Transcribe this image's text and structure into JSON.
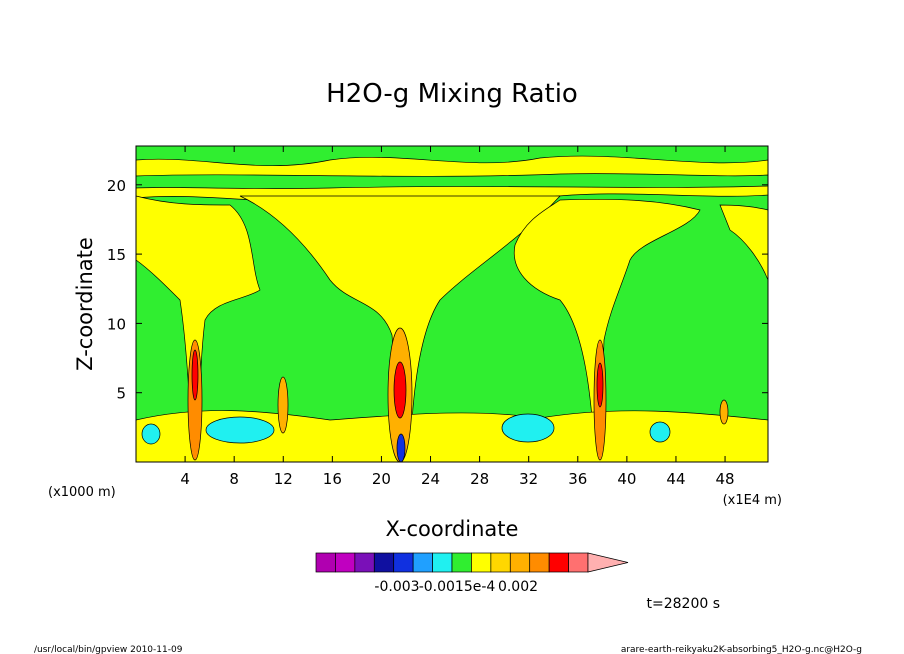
{
  "chart_data": {
    "type": "heatmap",
    "title": "H2O-g Mixing Ratio",
    "xlabel": "X-coordinate",
    "ylabel": "Z-coordinate",
    "x_unit_left": "(x1000 m)",
    "x_unit_right": "(x1E4 m)",
    "xlim": [
      0,
      51.5
    ],
    "ylim": [
      0,
      22.8
    ],
    "x_ticks": [
      4,
      8,
      12,
      16,
      20,
      24,
      28,
      32,
      36,
      40,
      44,
      48
    ],
    "y_ticks": [
      5,
      10,
      15,
      20
    ],
    "colorbar": {
      "colors": [
        "#b000b0",
        "#c000c0",
        "#7a10b8",
        "#1010a0",
        "#1030e0",
        "#20a0ff",
        "#20f0f0",
        "#30ee30",
        "#ffff00",
        "#ffd700",
        "#ffb000",
        "#ff8c00",
        "#ff0000",
        "#ff7070",
        "#ffb0b0"
      ],
      "labels": [
        "-0.003",
        "-0.0015e-4",
        "0.002"
      ]
    },
    "annotation": "t=28200 s"
  },
  "footer": {
    "left": "/usr/local/bin/gpview  2010-11-09",
    "right": "arare-earth-reikyaku2K-absorbing5_H2O-g.nc@H2O-g"
  }
}
